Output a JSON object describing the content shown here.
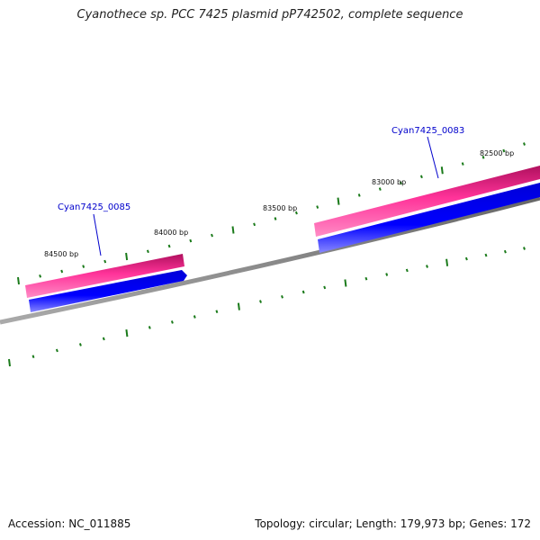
{
  "title": "Cyanothece sp. PCC 7425 plasmid pP742502, complete sequence",
  "footer": {
    "accession": "Accession: NC_011885",
    "summary": "Topology: circular; Length: 179,973 bp; Genes: 172"
  },
  "position_labels": [
    "84500 bp",
    "84000 bp",
    "83500 bp",
    "83000 bp",
    "82500 bp"
  ],
  "genes": [
    {
      "name": "Cyan7425_0085"
    },
    {
      "name": "Cyan7425_0083"
    }
  ],
  "colors": {
    "forward_track": "#ff3399",
    "reverse_track": "#0000ee",
    "backbone": "#888888",
    "ticks": "#1a7a1a",
    "gene_label": "#0000cc"
  }
}
